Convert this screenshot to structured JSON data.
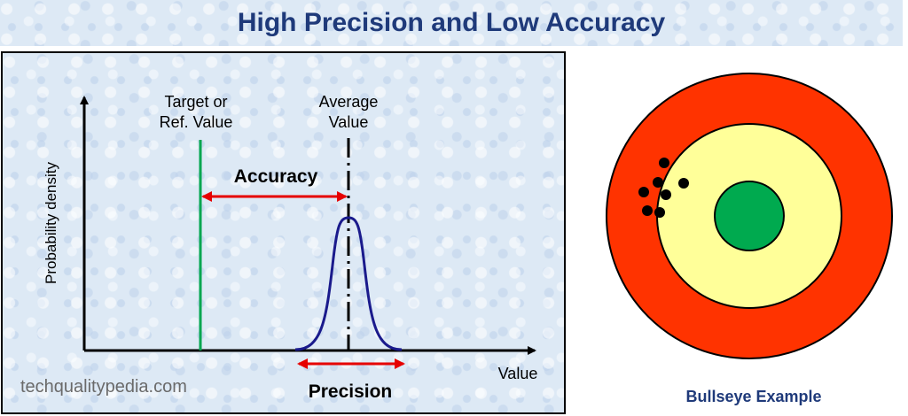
{
  "title": "High Precision and Low Accuracy",
  "diagram": {
    "target_label_line1": "Target or",
    "target_label_line2": "Ref. Value",
    "average_label_line1": "Average",
    "average_label_line2": "Value",
    "accuracy_label": "Accuracy",
    "precision_label": "Precision",
    "y_axis_label": "Probability density",
    "x_axis_label": "Value",
    "watermark": "techqualitypedia.com",
    "colors": {
      "target_line": "#00a650",
      "curve": "#1a1a8c",
      "arrow": "#e60000"
    }
  },
  "bullseye": {
    "caption": "Bullseye Example",
    "colors": {
      "outer_ring": "#ff3300",
      "middle_ring": "#ffff99",
      "center": "#00aa4f",
      "shots": "#000000"
    }
  }
}
